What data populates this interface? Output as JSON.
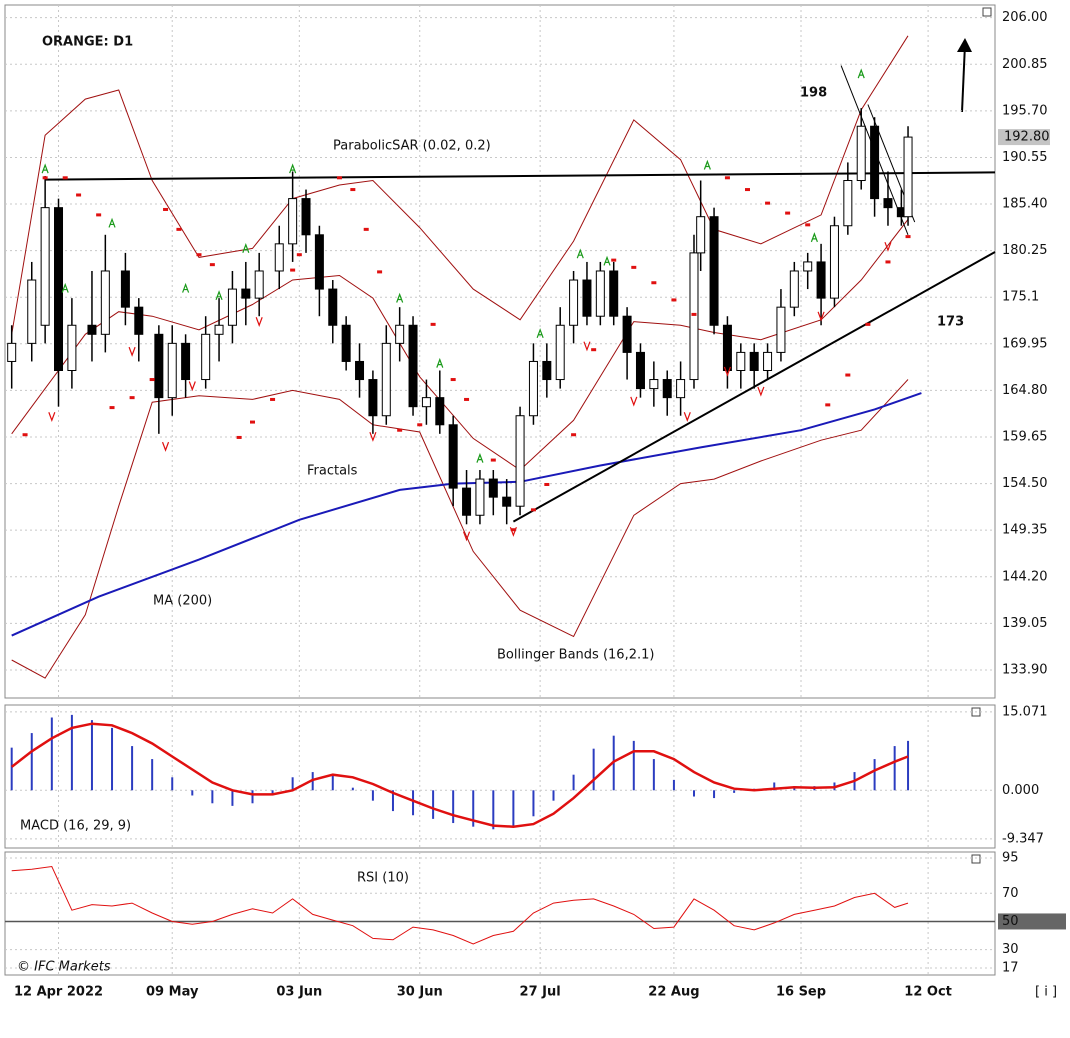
{
  "chart_data": [
    {
      "type": "candlestick",
      "title": "ORANGE: D1",
      "grid": true,
      "xlim": [
        0,
        148
      ],
      "ylim": [
        130.8,
        207.4
      ],
      "xticks": [
        {
          "value": 8,
          "label": "12 Apr 2022"
        },
        {
          "value": 25,
          "label": "09 May"
        },
        {
          "value": 44,
          "label": "03 Jun"
        },
        {
          "value": 62,
          "label": "30 Jun"
        },
        {
          "value": 80,
          "label": "27 Jul"
        },
        {
          "value": 100,
          "label": "22 Aug"
        },
        {
          "value": 119,
          "label": "16 Sep"
        },
        {
          "value": 138,
          "label": "12 Oct"
        }
      ],
      "yticks": [
        {
          "value": 206,
          "label": "206.00"
        },
        200.85,
        {
          "value": 195.7,
          "label": "195.70"
        },
        190.55,
        {
          "value": 185.4,
          "label": "185.40"
        },
        180.25,
        175.1,
        169.95,
        {
          "value": 164.8,
          "label": "164.80"
        },
        159.65,
        {
          "value": 154.5,
          "label": "154.50"
        },
        149.35,
        {
          "value": 144.2,
          "label": "144.20"
        },
        139.05,
        {
          "value": 133.9,
          "label": "133.90"
        }
      ],
      "last_price": {
        "value": 192.8,
        "label": "192.80"
      },
      "candles": {
        "x": [
          1,
          4,
          6,
          8,
          10,
          13,
          15,
          18,
          20,
          23,
          25,
          27,
          30,
          32,
          34,
          36,
          38,
          41,
          43,
          45,
          47,
          49,
          51,
          53,
          55,
          57,
          59,
          61,
          63,
          65,
          67,
          69,
          71,
          73,
          75,
          77,
          79,
          81,
          83,
          85,
          87,
          89,
          91,
          93,
          95,
          97,
          99,
          101,
          103,
          104,
          106,
          108,
          110,
          112,
          114,
          116,
          118,
          120,
          122,
          124,
          126,
          128,
          130,
          132,
          134,
          135
        ],
        "open": [
          168,
          170,
          172,
          185,
          167,
          172,
          171,
          178,
          174,
          171,
          164,
          170,
          166,
          171,
          172,
          176,
          175,
          178,
          181,
          186,
          182,
          176,
          172,
          168,
          166,
          162,
          170,
          172,
          163,
          164,
          161,
          154,
          151,
          155,
          153,
          152,
          162,
          168,
          166,
          172,
          177,
          173,
          178,
          173,
          169,
          165,
          166,
          164,
          166,
          180,
          184,
          172,
          167,
          169,
          167,
          169,
          174,
          178,
          179,
          175,
          183,
          188,
          194,
          186,
          185,
          184
        ],
        "high": [
          172,
          179,
          188.5,
          186,
          175,
          178,
          182,
          180,
          175,
          172,
          172,
          171,
          173,
          175,
          178,
          179,
          180,
          183,
          189,
          187,
          183,
          177,
          173,
          170,
          167,
          172,
          174,
          173,
          166,
          167,
          162,
          156,
          156,
          156,
          155,
          163,
          170,
          170,
          174,
          178,
          179,
          179,
          179,
          174,
          170,
          168,
          167,
          168,
          182,
          188,
          185,
          173,
          170,
          170,
          170,
          176,
          179,
          180,
          181,
          184,
          190,
          196,
          195,
          189,
          187,
          194
        ],
        "low": [
          165,
          168,
          170,
          163,
          165,
          168,
          169,
          172,
          168,
          160,
          162,
          164,
          165,
          168,
          170,
          172,
          173,
          176,
          179,
          180,
          173,
          170,
          167,
          164,
          160,
          161,
          168,
          162,
          161,
          160,
          152,
          150,
          150,
          151,
          150,
          151,
          161,
          164,
          165,
          170,
          172,
          172,
          172,
          166,
          164,
          163,
          162,
          162,
          165,
          178,
          171,
          165,
          165,
          165,
          166,
          168,
          173,
          176,
          172,
          174,
          182,
          187,
          184,
          183,
          183,
          183
        ],
        "close": [
          170,
          177,
          185,
          167,
          172,
          171,
          178,
          174,
          171,
          164,
          170,
          166,
          171,
          172,
          176,
          175,
          178,
          181,
          186,
          182,
          176,
          172,
          168,
          166,
          162,
          170,
          172,
          163,
          164,
          161,
          154,
          151,
          155,
          153,
          152,
          162,
          168,
          166,
          172,
          177,
          173,
          178,
          173,
          169,
          165,
          166,
          164,
          166,
          180,
          184,
          172,
          167,
          169,
          167,
          169,
          174,
          178,
          179,
          175,
          183,
          188,
          194,
          186,
          185,
          184,
          192.8
        ]
      },
      "ma": {
        "name": "MA (200)",
        "color": "#1a1ab8",
        "x": [
          1,
          14,
          29,
          44,
          59,
          67,
          77,
          89,
          104,
          119,
          130,
          137
        ],
        "values": [
          137.7,
          142.0,
          146.1,
          150.5,
          153.8,
          154.5,
          154.7,
          156.5,
          158.5,
          160.4,
          162.7,
          164.5
        ]
      },
      "bollinger": {
        "name": "Bollinger Bands (16,2.1)",
        "color": "#a01010",
        "x": [
          1,
          6,
          12,
          17,
          22,
          29,
          37,
          43,
          50,
          55,
          62,
          70,
          77,
          85,
          94,
          101,
          106,
          113,
          122,
          128,
          135
        ],
        "upper": [
          171,
          193,
          197,
          198,
          188,
          179.5,
          180.5,
          186,
          187.5,
          188,
          182.8,
          176,
          172.6,
          181.3,
          194.7,
          190.3,
          182.6,
          181,
          184.2,
          195.8,
          204
        ],
        "middle": [
          160,
          165,
          171,
          173.5,
          173,
          171.5,
          174.3,
          177,
          177.5,
          175,
          166.3,
          159.5,
          156,
          161.5,
          172.4,
          172,
          171.2,
          170.4,
          172.6,
          177,
          183.7
        ],
        "lower": [
          135,
          133,
          140,
          152,
          163.5,
          164.2,
          163.8,
          164.8,
          163.8,
          161,
          160.2,
          147,
          140.5,
          137.6,
          151,
          154.5,
          155,
          157,
          159.3,
          160.4,
          166
        ]
      },
      "sar": {
        "name": "ParabolicSAR (0.02, 0.2)",
        "color": "#e01010",
        "x": [
          3,
          6,
          9,
          11,
          14,
          16,
          19,
          22,
          24,
          26,
          29,
          31,
          35,
          37,
          40,
          43,
          44,
          50,
          52,
          54,
          56,
          59,
          62,
          64,
          67,
          69,
          73,
          76,
          79,
          81,
          85,
          88,
          91,
          94,
          97,
          100,
          103,
          108,
          111,
          114,
          117,
          120,
          123,
          126,
          129,
          132,
          135
        ],
        "values": [
          159.9,
          188.3,
          188.3,
          186.4,
          184.2,
          162.9,
          164.0,
          166.0,
          184.8,
          182.6,
          179.8,
          178.7,
          159.6,
          161.3,
          163.8,
          178.1,
          179.8,
          188.3,
          187.0,
          182.6,
          177.9,
          160.4,
          161.0,
          172.1,
          166.0,
          163.8,
          157.1,
          149.4,
          151.6,
          154.4,
          159.9,
          169.3,
          179.2,
          178.4,
          176.7,
          174.8,
          173.2,
          188.3,
          187.0,
          185.5,
          184.4,
          183.1,
          163.2,
          166.5,
          172.1,
          179.0,
          181.8
        ]
      },
      "fractals": {
        "name": "Fractals",
        "up": {
          "color": "#1a9a1a",
          "x": [
            6,
            9,
            16,
            27,
            32,
            36,
            43,
            59,
            65,
            71,
            80,
            86,
            90,
            105,
            121,
            128
          ],
          "values": [
            189.7,
            176.5,
            183.7,
            176.5,
            175.7,
            180.9,
            189.7,
            175.4,
            168.2,
            157.7,
            171.5,
            180.3,
            179.5,
            190.1,
            182.1,
            200.2
          ]
        },
        "down": {
          "color": "#e01010",
          "x": [
            7,
            19,
            24,
            28,
            38,
            55,
            69,
            76,
            87,
            94,
            102,
            108,
            113,
            122,
            132
          ],
          "values": [
            161.5,
            168.7,
            158.2,
            164.9,
            172.0,
            159.3,
            148.3,
            148.8,
            169.3,
            163.2,
            161.5,
            166.5,
            164.3,
            172.6,
            180.3
          ]
        }
      },
      "trendlines": [
        {
          "x": [
            6,
            148
          ],
          "values": [
            188.1,
            188.9
          ]
        },
        {
          "x": [
            76,
            148
          ],
          "values": [
            150.3,
            180.1
          ]
        },
        {
          "x": [
            125,
            135
          ],
          "values": [
            200.7,
            182
          ]
        },
        {
          "x": [
            129,
            136
          ],
          "values": [
            196.4,
            183.4
          ]
        }
      ],
      "annotations": [
        "198",
        "173"
      ]
    },
    {
      "type": "macd",
      "title": "MACD (16, 29, 9)",
      "ylim": [
        -11.1,
        16.4
      ],
      "yticks": [
        15.071,
        {
          "value": 0,
          "label": "0.000"
        },
        -9.347
      ],
      "x": [
        1,
        4,
        7,
        10,
        13,
        16,
        19,
        22,
        25,
        28,
        31,
        34,
        37,
        40,
        43,
        46,
        49,
        52,
        55,
        58,
        61,
        64,
        67,
        70,
        73,
        76,
        79,
        82,
        85,
        88,
        91,
        94,
        97,
        100,
        103,
        106,
        109,
        112,
        115,
        118,
        121,
        124,
        127,
        130,
        133,
        135
      ],
      "histogram": {
        "color": "#2b3cc0",
        "values": [
          8.2,
          11,
          14,
          14.5,
          13.5,
          12,
          8.5,
          6,
          2.5,
          -1,
          -2.5,
          -3,
          -2.5,
          -1,
          2.5,
          3.5,
          3,
          0.5,
          -2,
          -4,
          -4.8,
          -5.5,
          -6.3,
          -7,
          -7.5,
          -7,
          -5,
          -2,
          3,
          8,
          10.5,
          9.5,
          6,
          2,
          -1.2,
          -1.5,
          -0.5,
          0.3,
          1.5,
          0.8,
          0.8,
          1.5,
          3.5,
          6,
          8.5,
          9.5
        ]
      },
      "signal": {
        "color": "#e01010",
        "values": [
          4.5,
          7.5,
          10,
          12,
          12.8,
          12.5,
          11,
          9,
          6.5,
          4,
          1.5,
          0,
          -0.8,
          -0.8,
          0,
          2,
          3,
          2.5,
          1.2,
          -0.5,
          -2,
          -3.5,
          -4.8,
          -5.8,
          -6.8,
          -7,
          -6.5,
          -4.5,
          -1.5,
          2,
          5.5,
          7.5,
          7.5,
          6,
          3.5,
          1.5,
          0.3,
          0,
          0.3,
          0.6,
          0.5,
          0.6,
          1.8,
          3.8,
          5.5,
          6.5
        ]
      }
    },
    {
      "type": "line",
      "title": "RSI (10)",
      "ylim": [
        12,
        99.3
      ],
      "yticks": [
        95,
        70,
        50,
        30,
        17
      ],
      "reference_level": 50,
      "color": "#e01010",
      "x": [
        1,
        4,
        7,
        10,
        13,
        16,
        19,
        22,
        25,
        28,
        31,
        34,
        37,
        40,
        43,
        46,
        49,
        52,
        55,
        58,
        61,
        64,
        67,
        70,
        73,
        76,
        79,
        82,
        85,
        88,
        91,
        94,
        97,
        100,
        103,
        106,
        109,
        112,
        115,
        118,
        121,
        124,
        127,
        130,
        133,
        135
      ],
      "values": [
        86,
        87,
        89,
        58,
        62,
        61,
        63,
        56,
        50,
        48,
        50,
        55,
        59,
        56,
        66,
        55,
        51,
        47,
        38,
        37,
        46,
        44,
        40,
        34,
        40,
        43,
        56,
        63,
        65,
        66,
        61,
        55,
        45,
        46,
        66,
        58,
        47,
        44,
        49,
        55,
        58,
        61,
        67,
        70,
        60,
        63
      ],
      "credit": "© IFC Markets",
      "corner_label": "[ i ]"
    }
  ]
}
